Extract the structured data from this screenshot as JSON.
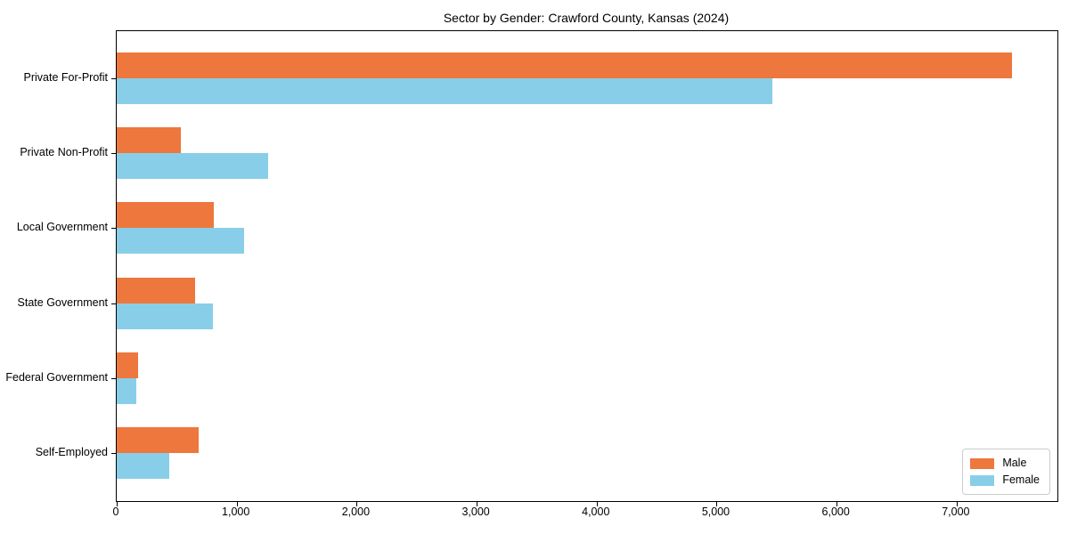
{
  "chart_data": {
    "type": "bar",
    "orientation": "horizontal",
    "title": "Sector by Gender: Crawford County, Kansas (2024)",
    "categories": [
      "Private For-Profit",
      "Private Non-Profit",
      "Local Government",
      "State Government",
      "Federal Government",
      "Self-Employed"
    ],
    "series": [
      {
        "name": "Male",
        "color": "#ed773c",
        "values": [
          7460,
          535,
          810,
          650,
          175,
          680
        ]
      },
      {
        "name": "Female",
        "color": "#89cee9",
        "values": [
          5465,
          1260,
          1065,
          805,
          165,
          435
        ]
      }
    ],
    "xlim": [
      0,
      7840
    ],
    "x_ticks": [
      0,
      1000,
      2000,
      3000,
      4000,
      5000,
      6000,
      7000
    ],
    "x_tick_labels": [
      "0",
      "1,000",
      "2,000",
      "3,000",
      "4,000",
      "5,000",
      "6,000",
      "7,000"
    ],
    "xlabel": "",
    "ylabel": "",
    "grid": false,
    "legend_position": "lower right",
    "background_color": "#ffffff",
    "spine_color": "#000000"
  }
}
